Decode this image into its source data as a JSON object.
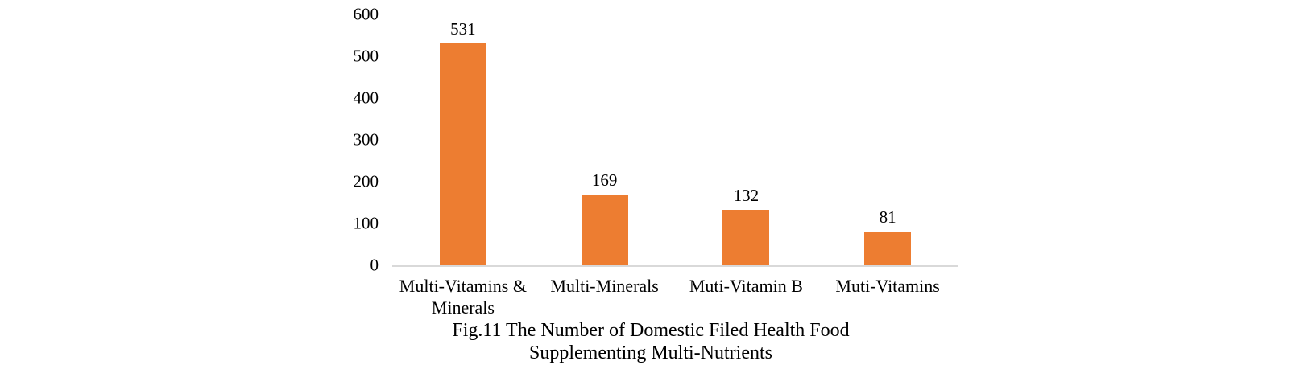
{
  "chart_data": {
    "type": "bar",
    "categories": [
      "Multi-Vitamins &\nMinerals",
      "Multi-Minerals",
      "Muti-Vitamin B",
      "Muti-Vitamins"
    ],
    "values": [
      531,
      169,
      132,
      81
    ],
    "data_labels": [
      "531",
      "169",
      "132",
      "81"
    ],
    "title": "Fig.11 The Number of Domestic Filed Health Food Supplementing Multi-Nutrients",
    "xlabel": "",
    "ylabel": "",
    "ylim": [
      0,
      600
    ],
    "yticks": [
      0,
      100,
      200,
      300,
      400,
      500,
      600
    ],
    "grid": false,
    "legend": "none",
    "bar_color": "#ED7D31",
    "axis_line_color": "#D9D9D9",
    "text_color": "#000000"
  },
  "caption": {
    "line1": "Fig.11 The Number of Domestic Filed Health Food",
    "line2": "Supplementing Multi-Nutrients"
  }
}
